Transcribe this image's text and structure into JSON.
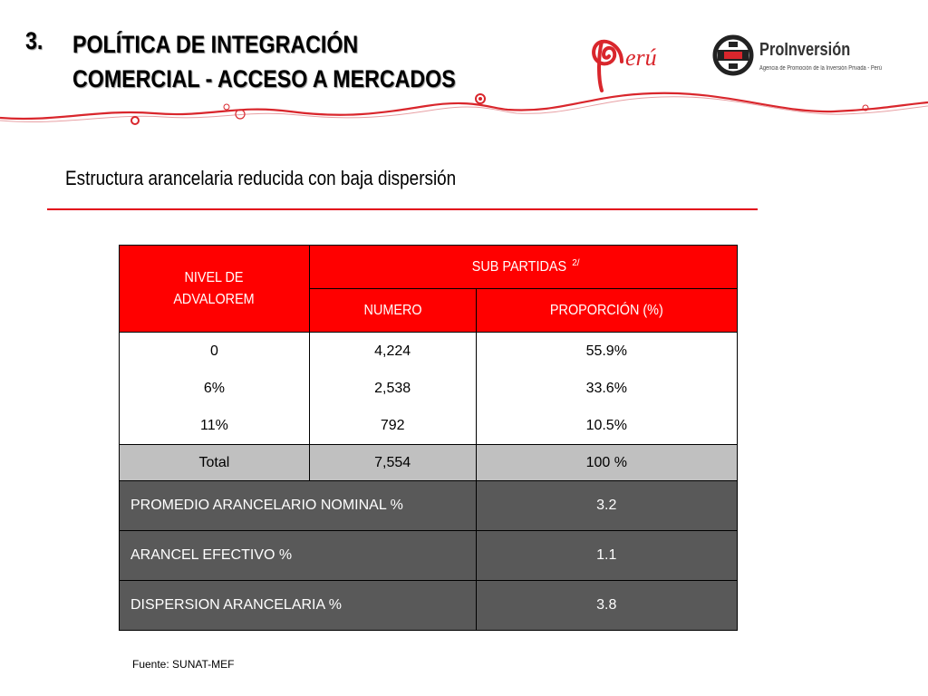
{
  "header": {
    "number": "3.",
    "title_line1": "POLÍTICA DE INTEGRACIÓN",
    "title_line2": "COMERCIAL -  ACCESO A MERCADOS"
  },
  "logos": {
    "peru_text": "erú",
    "proinversion_name": "ProInversión",
    "proinversion_tagline": "Agencia de Promoción de la Inversión Privada - Perú"
  },
  "subtitle": "Estructura arancelaria reducida con baja dispersión",
  "table": {
    "col_nivel": "NIVEL DE ADVALOREM",
    "col_group": "SUB PARTIDAS",
    "col_group_sup": "2/",
    "col_numero": "NUMERO",
    "col_proporcion": "PROPORCIÓN (%)",
    "rows": [
      {
        "nivel": "0",
        "numero": "4,224",
        "proporcion": "55.9%"
      },
      {
        "nivel": "6%",
        "numero": "2,538",
        "proporcion": "33.6%"
      },
      {
        "nivel": "11%",
        "numero": "792",
        "proporcion": "10.5%"
      }
    ],
    "total": {
      "label": "Total",
      "numero": "7,554",
      "proporcion": "100 %"
    },
    "summary": [
      {
        "label": "PROMEDIO  ARANCELARIO NOMINAL %",
        "value": "3.2"
      },
      {
        "label": "ARANCEL EFECTIVO %",
        "value": "1.1"
      },
      {
        "label": "DISPERSION ARANCELARIA %",
        "value": "3.8"
      }
    ]
  },
  "source": "Fuente: SUNAT-MEF",
  "colors": {
    "accent_red": "#ff0000",
    "rule_red": "#e2001a",
    "dark_gray": "#595959",
    "light_gray": "#c0c0c0"
  }
}
